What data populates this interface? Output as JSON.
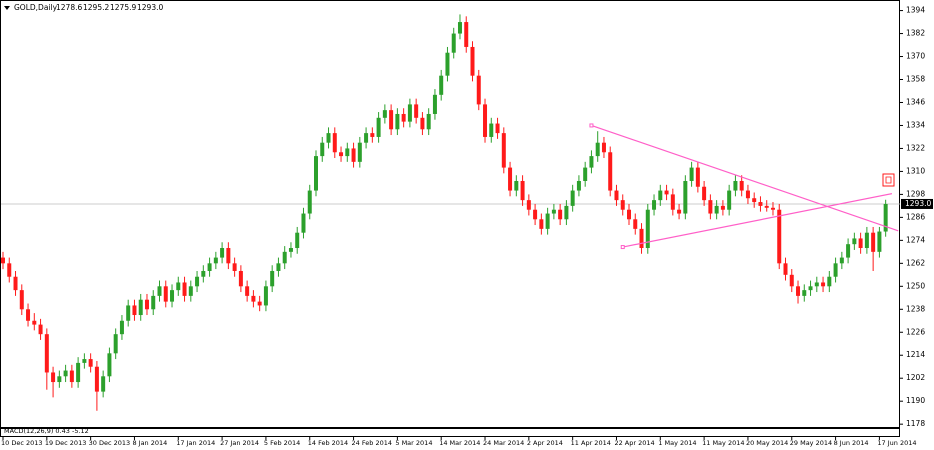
{
  "chart_data": {
    "type": "candlestick",
    "header": {
      "symbol": "GOLD,Daily",
      "values": [
        "1278.6",
        "1295.2",
        "1275.9",
        "1293.0"
      ]
    },
    "indicator_label": "MACD(12,26,9) 0.43 -5.12",
    "up_color": "#2ca02c",
    "down_color": "#ff1a1a",
    "trendline_color": "#ff5fc8",
    "current_price": {
      "value": 1293,
      "label": "1293.0"
    },
    "ylim": [
      1176,
      1399
    ],
    "yticks": [
      1394,
      1382,
      1370,
      1358,
      1346,
      1334,
      1322,
      1310,
      1298,
      1286,
      1274,
      1262,
      1250,
      1238,
      1226,
      1214,
      1202,
      1190,
      1178
    ],
    "categories": [
      "10 Dec 2013",
      null,
      null,
      null,
      null,
      null,
      null,
      "19 Dec 2013",
      null,
      null,
      null,
      null,
      null,
      null,
      "30 Dec 2013",
      null,
      null,
      null,
      null,
      null,
      null,
      "8 Jan 2014",
      null,
      null,
      null,
      null,
      null,
      null,
      "17 Jan 2014",
      null,
      null,
      null,
      null,
      null,
      null,
      "27 Jan 2014",
      null,
      null,
      null,
      null,
      null,
      null,
      "5 Feb 2014",
      null,
      null,
      null,
      null,
      null,
      null,
      "14 Feb 2014",
      null,
      null,
      null,
      null,
      null,
      null,
      "24 Feb 2014",
      null,
      null,
      null,
      null,
      null,
      null,
      "5 Mar 2014",
      null,
      null,
      null,
      null,
      null,
      null,
      "14 Mar 2014",
      null,
      null,
      null,
      null,
      null,
      null,
      "24 Mar 2014",
      null,
      null,
      null,
      null,
      null,
      null,
      "2 Apr 2014",
      null,
      null,
      null,
      null,
      null,
      null,
      "11 Apr 2014",
      null,
      null,
      null,
      null,
      null,
      null,
      "22 Apr 2014",
      null,
      null,
      null,
      null,
      null,
      null,
      "1 May 2014",
      null,
      null,
      null,
      null,
      null,
      null,
      "11 May 2014",
      null,
      null,
      null,
      null,
      null,
      null,
      "20 May 2014",
      null,
      null,
      null,
      null,
      null,
      null,
      "29 May 2014",
      null,
      null,
      null,
      null,
      null,
      null,
      "8 Jun 2014",
      null,
      null,
      null,
      null,
      null,
      null,
      "17 Jun 2014",
      null
    ],
    "ohlc": [
      [
        1265,
        1268,
        1259,
        1262
      ],
      [
        1262,
        1265,
        1252,
        1255
      ],
      [
        1255,
        1258,
        1245,
        1248
      ],
      [
        1248,
        1251,
        1235,
        1238
      ],
      [
        1238,
        1241,
        1229,
        1232
      ],
      [
        1232,
        1236,
        1227,
        1230
      ],
      [
        1230,
        1233,
        1222,
        1225
      ],
      [
        1225,
        1228,
        1196,
        1205
      ],
      [
        1205,
        1208,
        1192,
        1200
      ],
      [
        1200,
        1206,
        1197,
        1203
      ],
      [
        1203,
        1209,
        1200,
        1206
      ],
      [
        1206,
        1209,
        1197,
        1200
      ],
      [
        1200,
        1213,
        1197,
        1210
      ],
      [
        1210,
        1215,
        1207,
        1212
      ],
      [
        1212,
        1215,
        1205,
        1208
      ],
      [
        1208,
        1211,
        1185,
        1195
      ],
      [
        1195,
        1206,
        1192,
        1203
      ],
      [
        1203,
        1218,
        1200,
        1215
      ],
      [
        1215,
        1228,
        1212,
        1225
      ],
      [
        1225,
        1235,
        1222,
        1232
      ],
      [
        1232,
        1243,
        1229,
        1240
      ],
      [
        1240,
        1243,
        1232,
        1235
      ],
      [
        1235,
        1246,
        1232,
        1243
      ],
      [
        1243,
        1246,
        1235,
        1238
      ],
      [
        1238,
        1248,
        1235,
        1245
      ],
      [
        1245,
        1253,
        1242,
        1250
      ],
      [
        1250,
        1253,
        1239,
        1242
      ],
      [
        1242,
        1251,
        1239,
        1248
      ],
      [
        1248,
        1255,
        1245,
        1252
      ],
      [
        1252,
        1255,
        1242,
        1245
      ],
      [
        1245,
        1253,
        1242,
        1250
      ],
      [
        1250,
        1258,
        1247,
        1255
      ],
      [
        1255,
        1261,
        1252,
        1258
      ],
      [
        1258,
        1265,
        1255,
        1262
      ],
      [
        1262,
        1268,
        1259,
        1265
      ],
      [
        1265,
        1273,
        1262,
        1270
      ],
      [
        1270,
        1273,
        1259,
        1262
      ],
      [
        1262,
        1265,
        1255,
        1258
      ],
      [
        1258,
        1261,
        1247,
        1250
      ],
      [
        1250,
        1253,
        1242,
        1245
      ],
      [
        1245,
        1248,
        1239,
        1242
      ],
      [
        1242,
        1245,
        1237,
        1240
      ],
      [
        1240,
        1253,
        1237,
        1250
      ],
      [
        1250,
        1261,
        1247,
        1258
      ],
      [
        1258,
        1265,
        1255,
        1262
      ],
      [
        1262,
        1271,
        1259,
        1268
      ],
      [
        1268,
        1273,
        1265,
        1270
      ],
      [
        1270,
        1281,
        1267,
        1278
      ],
      [
        1278,
        1291,
        1275,
        1288
      ],
      [
        1288,
        1303,
        1285,
        1300
      ],
      [
        1300,
        1321,
        1297,
        1318
      ],
      [
        1318,
        1328,
        1315,
        1325
      ],
      [
        1325,
        1333,
        1322,
        1330
      ],
      [
        1330,
        1333,
        1317,
        1320
      ],
      [
        1320,
        1323,
        1315,
        1318
      ],
      [
        1318,
        1325,
        1315,
        1322
      ],
      [
        1322,
        1325,
        1312,
        1315
      ],
      [
        1315,
        1328,
        1312,
        1325
      ],
      [
        1325,
        1333,
        1322,
        1330
      ],
      [
        1330,
        1333,
        1325,
        1328
      ],
      [
        1328,
        1341,
        1325,
        1338
      ],
      [
        1338,
        1345,
        1335,
        1342
      ],
      [
        1342,
        1345,
        1329,
        1332
      ],
      [
        1332,
        1343,
        1329,
        1340
      ],
      [
        1340,
        1343,
        1333,
        1336
      ],
      [
        1336,
        1348,
        1333,
        1345
      ],
      [
        1345,
        1348,
        1335,
        1338
      ],
      [
        1338,
        1341,
        1329,
        1332
      ],
      [
        1332,
        1343,
        1329,
        1340
      ],
      [
        1340,
        1353,
        1337,
        1350
      ],
      [
        1350,
        1363,
        1347,
        1360
      ],
      [
        1360,
        1375,
        1357,
        1372
      ],
      [
        1372,
        1385,
        1369,
        1382
      ],
      [
        1382,
        1392,
        1379,
        1388
      ],
      [
        1388,
        1391,
        1372,
        1375
      ],
      [
        1375,
        1378,
        1357,
        1360
      ],
      [
        1360,
        1363,
        1342,
        1345
      ],
      [
        1345,
        1348,
        1325,
        1328
      ],
      [
        1328,
        1338,
        1325,
        1335
      ],
      [
        1335,
        1338,
        1327,
        1330
      ],
      [
        1330,
        1333,
        1309,
        1312
      ],
      [
        1312,
        1315,
        1297,
        1300
      ],
      [
        1300,
        1308,
        1297,
        1305
      ],
      [
        1305,
        1308,
        1292,
        1295
      ],
      [
        1295,
        1298,
        1287,
        1290
      ],
      [
        1290,
        1293,
        1282,
        1285
      ],
      [
        1285,
        1288,
        1277,
        1280
      ],
      [
        1280,
        1291,
        1277,
        1288
      ],
      [
        1288,
        1293,
        1285,
        1290
      ],
      [
        1290,
        1293,
        1282,
        1285
      ],
      [
        1285,
        1295,
        1282,
        1292
      ],
      [
        1292,
        1303,
        1289,
        1300
      ],
      [
        1300,
        1308,
        1297,
        1305
      ],
      [
        1305,
        1315,
        1302,
        1312
      ],
      [
        1312,
        1321,
        1309,
        1318
      ],
      [
        1318,
        1331,
        1315,
        1325
      ],
      [
        1325,
        1328,
        1317,
        1320
      ],
      [
        1320,
        1323,
        1297,
        1300
      ],
      [
        1300,
        1303,
        1292,
        1295
      ],
      [
        1295,
        1298,
        1287,
        1290
      ],
      [
        1290,
        1293,
        1282,
        1285
      ],
      [
        1285,
        1288,
        1277,
        1280
      ],
      [
        1280,
        1283,
        1267,
        1270
      ],
      [
        1270,
        1293,
        1267,
        1290
      ],
      [
        1290,
        1298,
        1287,
        1295
      ],
      [
        1295,
        1303,
        1292,
        1300
      ],
      [
        1300,
        1303,
        1295,
        1298
      ],
      [
        1298,
        1301,
        1287,
        1290
      ],
      [
        1290,
        1293,
        1285,
        1288
      ],
      [
        1288,
        1308,
        1285,
        1305
      ],
      [
        1305,
        1315,
        1302,
        1312
      ],
      [
        1312,
        1315,
        1299,
        1302
      ],
      [
        1302,
        1305,
        1292,
        1295
      ],
      [
        1295,
        1298,
        1285,
        1288
      ],
      [
        1288,
        1295,
        1285,
        1292
      ],
      [
        1292,
        1295,
        1287,
        1290
      ],
      [
        1290,
        1303,
        1287,
        1300
      ],
      [
        1300,
        1308,
        1297,
        1305
      ],
      [
        1305,
        1308,
        1297,
        1300
      ],
      [
        1300,
        1303,
        1293,
        1296
      ],
      [
        1296,
        1299,
        1291,
        1294
      ],
      [
        1294,
        1297,
        1289,
        1292
      ],
      [
        1292,
        1295,
        1289,
        1291
      ],
      [
        1291,
        1294,
        1287,
        1290
      ],
      [
        1290,
        1293,
        1259,
        1262
      ],
      [
        1262,
        1265,
        1253,
        1256
      ],
      [
        1256,
        1259,
        1247,
        1250
      ],
      [
        1250,
        1253,
        1241,
        1245
      ],
      [
        1245,
        1251,
        1242,
        1248
      ],
      [
        1248,
        1253,
        1245,
        1250
      ],
      [
        1250,
        1255,
        1247,
        1252
      ],
      [
        1252,
        1255,
        1247,
        1250
      ],
      [
        1250,
        1258,
        1247,
        1255
      ],
      [
        1255,
        1265,
        1252,
        1262
      ],
      [
        1262,
        1268,
        1259,
        1265
      ],
      [
        1265,
        1275,
        1262,
        1272
      ],
      [
        1272,
        1278,
        1269,
        1275
      ],
      [
        1275,
        1278,
        1267,
        1270
      ],
      [
        1270,
        1281,
        1267,
        1278
      ],
      [
        1278,
        1281,
        1258,
        1268
      ],
      [
        1268,
        1281,
        1265,
        1278.6
      ],
      [
        1278.6,
        1295.2,
        1275.9,
        1293.0
      ]
    ],
    "trendlines": [
      {
        "start": [
          94,
          1334
        ],
        "end": [
          143,
          1279
        ]
      },
      {
        "start": [
          99,
          1270.5
        ],
        "end": [
          142,
          1298.4
        ]
      }
    ]
  }
}
